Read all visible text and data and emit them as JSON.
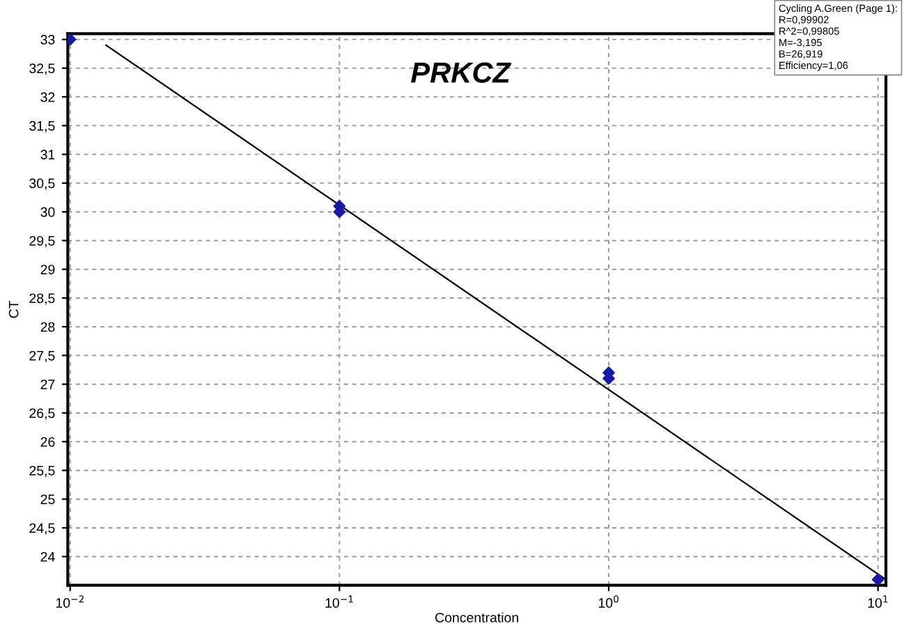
{
  "chart_data": {
    "type": "scatter",
    "title": "PRKCZ",
    "xlabel": "Concentration",
    "ylabel": "CT",
    "log": "x",
    "series": [
      {
        "color": "#1a1aa8",
        "marker": "diamond",
        "x": [
          0.01,
          0.1,
          0.1,
          1,
          1,
          10
        ],
        "values": [
          33.0,
          30.1,
          30.0,
          27.2,
          27.1,
          23.6
        ]
      },
      {
        "type": "line",
        "color": "#000000",
        "marker": "none",
        "line_style": "solid",
        "x": [
          0.0136,
          10.7
        ],
        "values": [
          32.9,
          23.6
        ]
      }
    ],
    "xlim": [
      0.0098,
      10.7
    ],
    "ylim": [
      23.5,
      33.1
    ],
    "xticks": [
      {
        "value": 0.01,
        "label": "10$^{−2}$"
      },
      {
        "value": 0.1,
        "label": "10$^{−1}$"
      },
      {
        "value": 1,
        "label": "10$^{0}$"
      },
      {
        "value": 10,
        "label": "10$^{1}$"
      }
    ],
    "yticks": [
      {
        "value": 24,
        "label": "24"
      },
      {
        "value": 24.5,
        "label": "24,5"
      },
      {
        "value": 25,
        "label": "25"
      },
      {
        "value": 25.5,
        "label": "25,5"
      },
      {
        "value": 26,
        "label": "26"
      },
      {
        "value": 26.5,
        "label": "26,5"
      },
      {
        "value": 27,
        "label": "27"
      },
      {
        "value": 27.5,
        "label": "27,5"
      },
      {
        "value": 28,
        "label": "28"
      },
      {
        "value": 28.5,
        "label": "28,5"
      },
      {
        "value": 29,
        "label": "29"
      },
      {
        "value": 29.5,
        "label": "29,5"
      },
      {
        "value": 30,
        "label": "30"
      },
      {
        "value": 30.5,
        "label": "30,5"
      },
      {
        "value": 31,
        "label": "31"
      },
      {
        "value": 31.5,
        "label": "31,5"
      },
      {
        "value": 32,
        "label": "32"
      },
      {
        "value": 32.5,
        "label": "32,5"
      },
      {
        "value": 33,
        "label": "33"
      }
    ],
    "grid": true,
    "annotations": [
      "Cycling A.Green (Page 1):\nR=0,99902\nR^2=0,99805\nM=-3,195\nB=26,919\nEfficiency=1,06"
    ]
  }
}
